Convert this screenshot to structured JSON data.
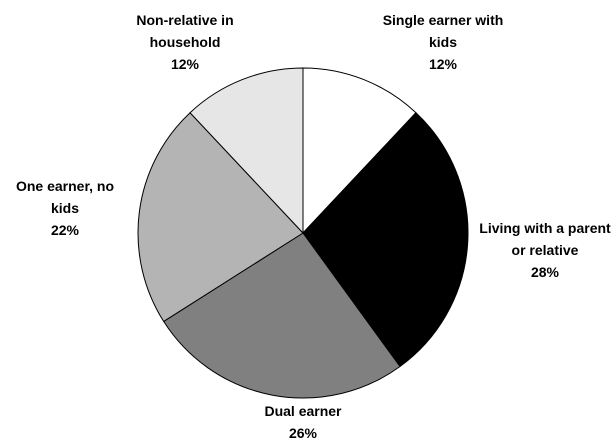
{
  "chart_data": {
    "type": "pie",
    "categories": [
      "Single earner with kids",
      "Living with a parent or relative",
      "Dual earner",
      "One earner, no kids",
      "Non-relative in household"
    ],
    "values": [
      12,
      28,
      26,
      22,
      12
    ],
    "value_labels": [
      "12%",
      "28%",
      "26%",
      "22%",
      "12%"
    ],
    "colors": [
      "#ffffff",
      "#000000",
      "#808080",
      "#b4b4b4",
      "#e6e6e6"
    ]
  }
}
